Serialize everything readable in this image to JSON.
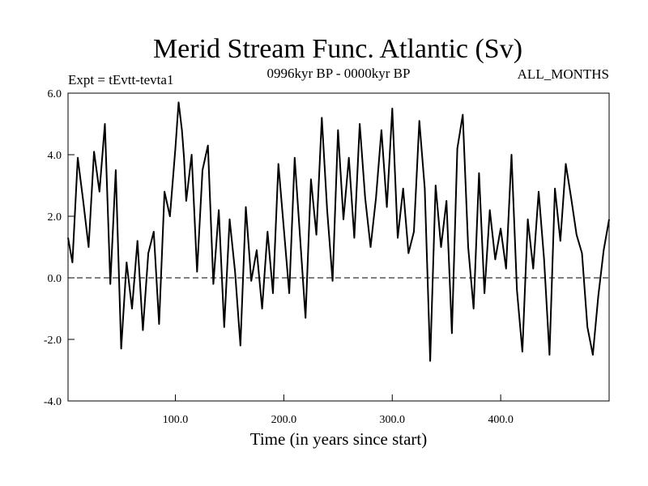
{
  "chart_data": {
    "type": "line",
    "title": "Merid Stream Func. Atlantic (Sv)",
    "subtitle_left": "Expt = tEvtt-tevta1",
    "subtitle_center": "0996kyr BP - 0000kyr BP",
    "subtitle_right": "ALL_MONTHS",
    "xlabel": "Time (in years since start)",
    "ylabel": "",
    "xlim": [
      1,
      500
    ],
    "ylim": [
      -4,
      6
    ],
    "x_ticks": [
      100,
      200,
      300,
      400
    ],
    "x_tick_labels": [
      "100.0",
      "200.0",
      "300.0",
      "400.0"
    ],
    "y_ticks": [
      -4,
      -2,
      0,
      2,
      4,
      6
    ],
    "y_tick_labels": [
      "-4.0",
      "-2.0",
      "0.0",
      "2.0",
      "4.0",
      "6.0"
    ],
    "reference_line": 0,
    "series": [
      {
        "name": "Merid Stream Func. Atlantic",
        "x": [
          1,
          5,
          10,
          15,
          20,
          25,
          30,
          35,
          40,
          45,
          50,
          55,
          60,
          65,
          70,
          75,
          80,
          85,
          90,
          95,
          100,
          103,
          106,
          108,
          110,
          115,
          120,
          125,
          130,
          135,
          140,
          145,
          150,
          155,
          160,
          165,
          170,
          175,
          180,
          185,
          190,
          195,
          200,
          205,
          210,
          215,
          220,
          225,
          230,
          235,
          240,
          245,
          250,
          255,
          260,
          265,
          270,
          275,
          280,
          285,
          290,
          295,
          300,
          305,
          310,
          315,
          320,
          325,
          330,
          335,
          340,
          345,
          350,
          355,
          360,
          365,
          370,
          375,
          380,
          385,
          390,
          395,
          400,
          405,
          410,
          415,
          420,
          425,
          430,
          435,
          440,
          445,
          450,
          455,
          460,
          465,
          470,
          475,
          480,
          485,
          490,
          495,
          500
        ],
        "values": [
          1.3,
          0.5,
          3.9,
          2.5,
          1.0,
          4.1,
          2.8,
          5.0,
          -0.2,
          3.5,
          -2.3,
          0.5,
          -1.0,
          1.2,
          -1.7,
          0.8,
          1.5,
          -1.5,
          2.8,
          2.0,
          4.2,
          5.7,
          4.8,
          3.9,
          2.5,
          4.0,
          0.2,
          3.5,
          4.3,
          -0.2,
          2.2,
          -1.6,
          1.9,
          0.2,
          -2.2,
          2.3,
          -0.1,
          0.9,
          -1.0,
          1.5,
          -0.5,
          3.7,
          1.6,
          -0.5,
          3.9,
          1.3,
          -1.3,
          3.2,
          1.4,
          5.2,
          2.2,
          -0.1,
          4.8,
          1.9,
          3.9,
          1.3,
          5.0,
          2.6,
          1.0,
          2.6,
          4.8,
          2.3,
          5.5,
          1.3,
          2.9,
          0.8,
          1.5,
          5.1,
          2.9,
          -2.7,
          3.0,
          1.0,
          2.5,
          -1.8,
          4.2,
          5.3,
          1.0,
          -1.0,
          3.4,
          -0.5,
          2.2,
          0.6,
          1.6,
          0.3,
          4.0,
          -0.4,
          -2.4,
          1.9,
          0.3,
          2.8,
          0.6,
          -2.5,
          2.9,
          1.2,
          3.7,
          2.6,
          1.4,
          0.8,
          -1.6,
          -2.5,
          -0.6,
          0.9,
          1.9
        ]
      }
    ]
  }
}
